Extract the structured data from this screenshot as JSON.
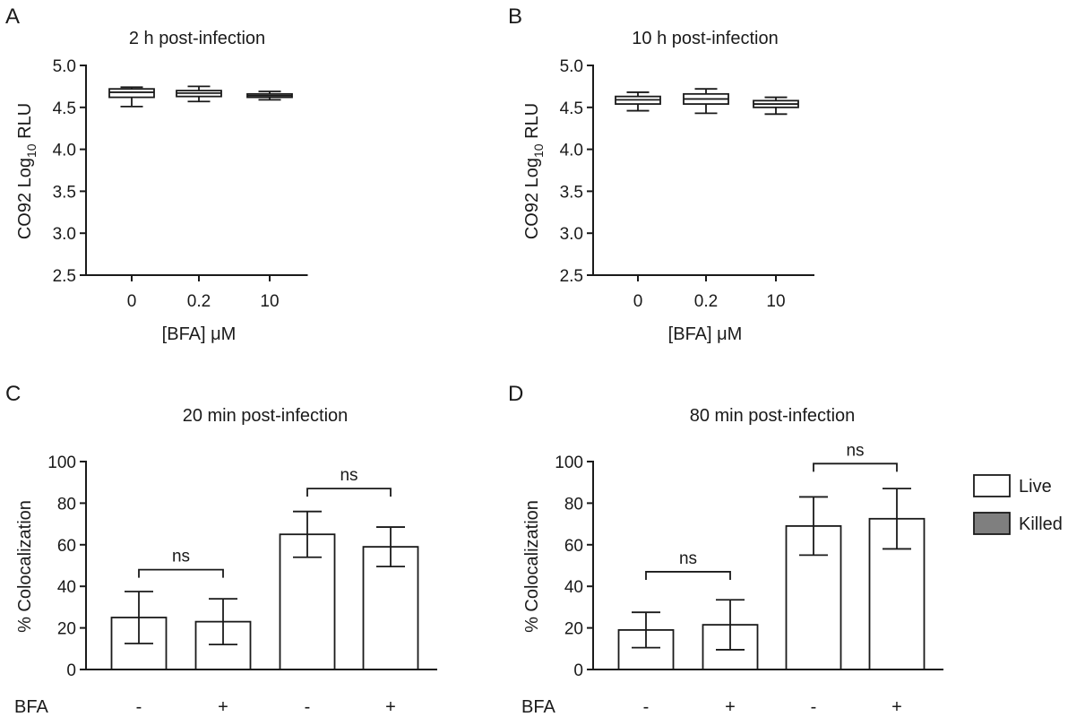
{
  "panels": [
    {
      "letter": "A",
      "title": "2 h post-infection",
      "ylabel_main": "CO92 Log",
      "ylabel_sub": "10",
      "ylabel_tail": " RLU",
      "xlabel": "[BFA] μM"
    },
    {
      "letter": "B",
      "title": "10 h post-infection",
      "ylabel_main": "CO92 Log",
      "ylabel_sub": "10",
      "ylabel_tail": " RLU",
      "xlabel": "[BFA] μM"
    },
    {
      "letter": "C",
      "title": "20 min post-infection",
      "ylabel": "% Colocalization",
      "row_label": "BFA"
    },
    {
      "letter": "D",
      "title": "80 min post-infection",
      "ylabel": "% Colocalization",
      "row_label": "BFA"
    }
  ],
  "legend": {
    "live": "Live",
    "killed": "Killed"
  },
  "colors": {
    "live_fill": "#ffffff",
    "killed_fill": "#7f7f7f",
    "ink": "#1a1a1a"
  },
  "chart_data": [
    {
      "type": "box",
      "title": "2 h post-infection",
      "xlabel": "[BFA] μM",
      "ylabel": "CO92 Log10 RLU",
      "categories": [
        "0",
        "0.2",
        "10"
      ],
      "ylim": [
        2.5,
        5.0
      ],
      "yticks": [
        "2.5",
        "3.0",
        "3.5",
        "4.0",
        "4.5",
        "5.0"
      ],
      "boxes": [
        {
          "min": 4.51,
          "q1": 4.62,
          "median": 4.68,
          "q3": 4.72,
          "max": 4.74
        },
        {
          "min": 4.57,
          "q1": 4.63,
          "median": 4.67,
          "q3": 4.7,
          "max": 4.75
        },
        {
          "min": 4.59,
          "q1": 4.62,
          "median": 4.64,
          "q3": 4.66,
          "max": 4.69
        }
      ]
    },
    {
      "type": "box",
      "title": "10 h post-infection",
      "xlabel": "[BFA] μM",
      "ylabel": "CO92 Log10 RLU",
      "categories": [
        "0",
        "0.2",
        "10"
      ],
      "ylim": [
        2.5,
        5.0
      ],
      "yticks": [
        "2.5",
        "3.0",
        "3.5",
        "4.0",
        "4.5",
        "5.0"
      ],
      "boxes": [
        {
          "min": 4.46,
          "q1": 4.54,
          "median": 4.59,
          "q3": 4.63,
          "max": 4.68
        },
        {
          "min": 4.43,
          "q1": 4.54,
          "median": 4.6,
          "q3": 4.66,
          "max": 4.72
        },
        {
          "min": 4.42,
          "q1": 4.5,
          "median": 4.54,
          "q3": 4.58,
          "max": 4.62
        }
      ]
    },
    {
      "type": "bar",
      "title": "20 min post-infection",
      "ylabel": "% Colocalization",
      "ylim": [
        0,
        100
      ],
      "yticks": [
        "0",
        "20",
        "40",
        "60",
        "80",
        "100"
      ],
      "categories": [
        "-",
        "+",
        "-",
        "+"
      ],
      "series_of_bar": [
        "Live",
        "Live",
        "Killed",
        "Killed"
      ],
      "values": [
        25,
        23,
        65,
        59
      ],
      "errors": [
        12.5,
        11,
        11,
        9.5
      ],
      "comparisons": [
        {
          "bars": [
            0,
            1
          ],
          "y": 48,
          "label": "ns"
        },
        {
          "bars": [
            2,
            3
          ],
          "y": 87,
          "label": "ns"
        }
      ]
    },
    {
      "type": "bar",
      "title": "80 min post-infection",
      "ylabel": "% Colocalization",
      "ylim": [
        0,
        100
      ],
      "yticks": [
        "0",
        "20",
        "40",
        "60",
        "80",
        "100"
      ],
      "categories": [
        "-",
        "+",
        "-",
        "+"
      ],
      "series_of_bar": [
        "Live",
        "Live",
        "Killed",
        "Killed"
      ],
      "values": [
        19,
        21.5,
        69,
        72.5
      ],
      "errors": [
        8.5,
        12,
        14,
        14.5
      ],
      "comparisons": [
        {
          "bars": [
            0,
            1
          ],
          "y": 47,
          "label": "ns"
        },
        {
          "bars": [
            2,
            3
          ],
          "y": 99,
          "label": "ns"
        }
      ]
    }
  ]
}
